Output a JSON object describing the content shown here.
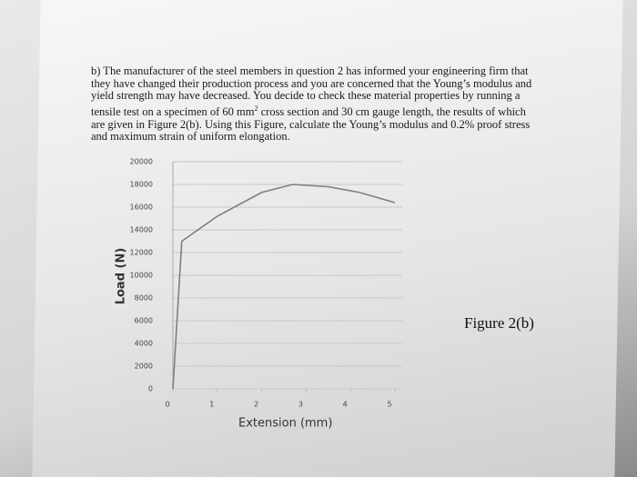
{
  "document": {
    "lines": [
      "b) The manufacturer of the steel members in question 2 has informed your engineering firm that",
      "they have changed their production process and you are concerned that the Young’s modulus and",
      "yield strength may have decreased. You decide to check these material properties by running a",
      {
        "before": "tensile test on a specimen of 60 mm",
        "sup": "2",
        "after": " cross section and 30 cm gauge length, the results of which"
      },
      "are given in Figure 2(b). Using this Figure, calculate the Young’s modulus and 0.2% proof stress",
      "and maximum strain of uniform elongation."
    ],
    "caption": "Figure 2(b)"
  },
  "chart_data": {
    "type": "line",
    "xlabel": "Extension (mm)",
    "ylabel": "Load (N)",
    "x": [
      0,
      0.2,
      1,
      2,
      2.7,
      3.5,
      4.2,
      5
    ],
    "values": [
      0,
      13000,
      15200,
      17300,
      18000,
      17800,
      17300,
      16400
    ],
    "color": "#7f7f7f",
    "xlim": [
      0,
      5
    ],
    "xticks": [
      0,
      1,
      2,
      3,
      4,
      5
    ],
    "ylim": [
      0,
      20000
    ],
    "yticks": [
      0,
      2000,
      4000,
      6000,
      8000,
      10000,
      12000,
      14000,
      16000,
      18000,
      20000
    ],
    "grid": true
  }
}
